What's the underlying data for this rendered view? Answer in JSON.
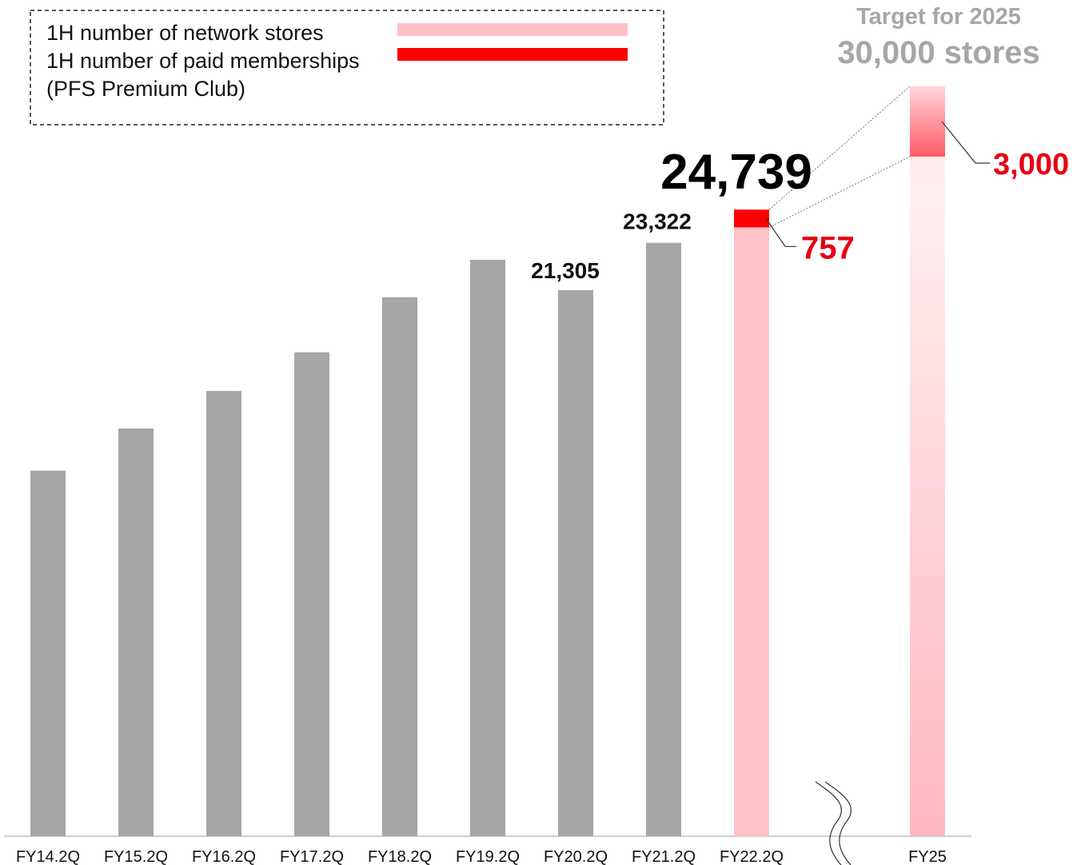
{
  "chart_data": {
    "type": "bar",
    "categories": [
      "FY14.2Q",
      "FY15.2Q",
      "FY16.2Q",
      "FY17.2Q",
      "FY18.2Q",
      "FY19.2Q",
      "FY20.2Q",
      "FY21.2Q",
      "FY22.2Q",
      "FY25"
    ],
    "series": [
      {
        "name": "1H number of network stores",
        "values": [
          13600,
          15400,
          17000,
          18650,
          21000,
          22600,
          21305,
          23322,
          24739,
          30000
        ]
      },
      {
        "name": "1H number of paid memberships (PFS Premium Club)",
        "values": [
          null,
          null,
          null,
          null,
          null,
          null,
          null,
          null,
          757,
          3000
        ]
      }
    ],
    "data_labels": {
      "FY20.2Q": "21,305",
      "FY21.2Q": "23,322",
      "FY22.2Q": "24,739",
      "FY22.2Q_paid": "757",
      "FY25_paid": "3,000"
    },
    "ylim": [
      -2000,
      30000
    ],
    "colors": {
      "history_bar": "#a6a6a6",
      "network_stores": "#ffc2c6",
      "paid_memberships": "#ff0000",
      "target_text": "#a6a6a6",
      "paid_label": "#e60012"
    },
    "legend": {
      "placement": "top-left",
      "items": [
        {
          "label": "1H number of network stores",
          "color": "#ffc2c6"
        },
        {
          "label": "1H number of paid memberships",
          "color": "#ff0000"
        },
        {
          "label": "(PFS Premium Club)",
          "color": ""
        }
      ]
    },
    "target": {
      "line1": "Target for 2025",
      "line2": "30,000 stores"
    },
    "axis_break_between": [
      "FY22.2Q",
      "FY25"
    ]
  }
}
